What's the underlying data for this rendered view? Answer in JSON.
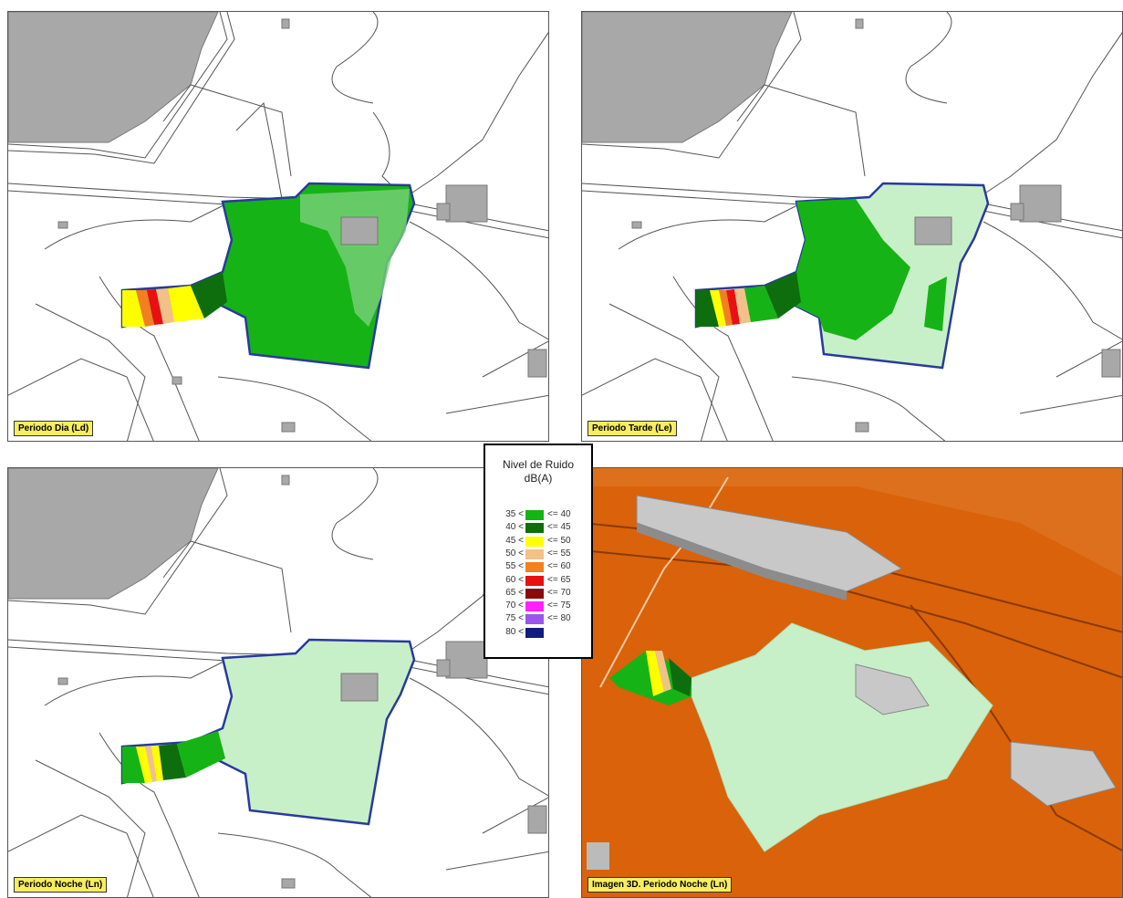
{
  "panels": [
    {
      "id": "dia",
      "label": "Periodo Dia (Ld)"
    },
    {
      "id": "tarde",
      "label": "Periodo Tarde (Le)"
    },
    {
      "id": "noche",
      "label": "Periodo Noche (Ln)"
    },
    {
      "id": "3d",
      "label": "Imagen 3D. Periodo Noche (Ln)"
    }
  ],
  "legend": {
    "title_line1": "Nivel de Ruido",
    "title_line2": "dB(A)",
    "bands": [
      {
        "lower": "35 <",
        "upper": "<= 40",
        "color": "#16b316"
      },
      {
        "lower": "40 <",
        "upper": "<= 45",
        "color": "#0e6e0e"
      },
      {
        "lower": "45 <",
        "upper": "<= 50",
        "color": "#ffff00"
      },
      {
        "lower": "50 <",
        "upper": "<= 55",
        "color": "#f4c08a"
      },
      {
        "lower": "55 <",
        "upper": "<= 60",
        "color": "#f08020"
      },
      {
        "lower": "60 <",
        "upper": "<= 65",
        "color": "#e81010"
      },
      {
        "lower": "65 <",
        "upper": "<= 70",
        "color": "#8a0a0a"
      },
      {
        "lower": "70 <",
        "upper": "<= 75",
        "color": "#ff22ff"
      },
      {
        "lower": "75 <",
        "upper": "<= 80",
        "color": "#9a55ee"
      },
      {
        "lower": "80 <",
        "upper": "",
        "color": "#121c80"
      }
    ]
  },
  "colors": {
    "site_boundary": "#2a3a9c",
    "building": "#a8a8a8",
    "light_green_zone": "#c8f0c8",
    "terrain_3d": "#d9620a"
  }
}
